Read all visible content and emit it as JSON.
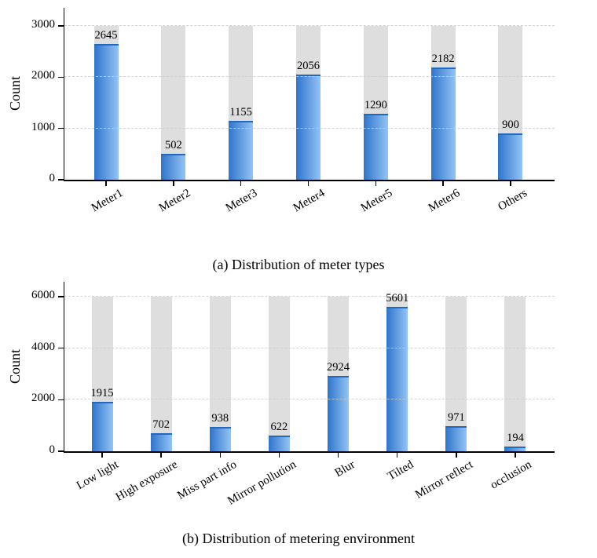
{
  "colors": {
    "axis": "#000000",
    "grid": "#cdcdcd",
    "text": "#000000",
    "bar_gradient_left": "#2f74cb",
    "bar_gradient_right": "#93c4f4",
    "bar_top_edge": "#2268bd",
    "background_bar": "#dedede"
  },
  "chart_data": [
    {
      "type": "bar",
      "title": "(a) Distribution of meter types",
      "ylabel": "Count",
      "xlabel": "",
      "categories": [
        "Meter1",
        "Meter2",
        "Meter3",
        "Meter4",
        "Meter5",
        "Meter6",
        "Others"
      ],
      "values": [
        2645,
        502,
        1155,
        2056,
        1290,
        2182,
        900
      ],
      "ylim": [
        0,
        3000
      ],
      "yticks": [
        0,
        1000,
        2000,
        3000
      ],
      "grid": "horizontal-dashed",
      "legend": "none",
      "bar_style": {
        "fill": "horizontal blue gradient",
        "background_bars_to_ymax": true,
        "value_labels_above_bars": true,
        "x_label_rotation_deg": 30
      }
    },
    {
      "type": "bar",
      "title": "(b) Distribution of metering environment",
      "ylabel": "Count",
      "xlabel": "",
      "categories": [
        "Low light",
        "High exposure",
        "Miss part info",
        "Mirror pollution",
        "Blur",
        "Tilted",
        "Mirror reflect",
        "occlusion"
      ],
      "values": [
        1915,
        702,
        938,
        622,
        2924,
        5601,
        971,
        194
      ],
      "ylim": [
        0,
        6000
      ],
      "yticks": [
        0,
        2000,
        4000,
        6000
      ],
      "grid": "horizontal-dashed",
      "legend": "none",
      "bar_style": {
        "fill": "horizontal blue gradient",
        "background_bars_to_ymax": true,
        "value_labels_above_bars": true,
        "x_label_rotation_deg": 30
      }
    }
  ]
}
